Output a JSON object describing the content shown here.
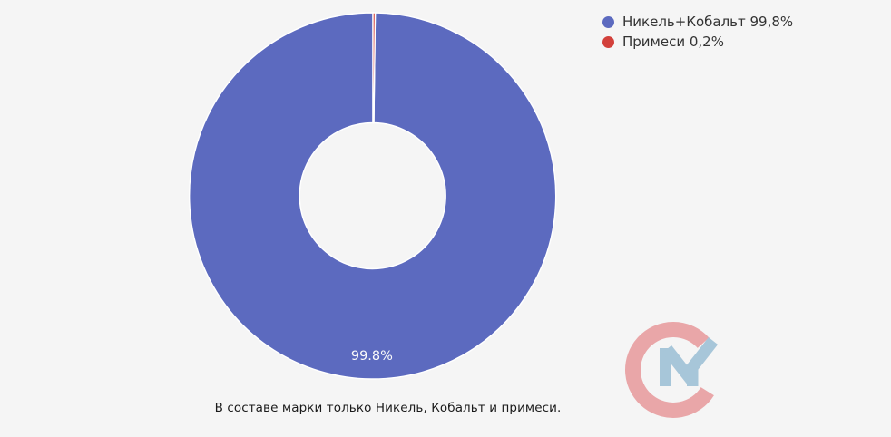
{
  "chart_data": {
    "type": "pie",
    "subtype": "donut",
    "title": "",
    "categories": [
      "Никель+Кобальт",
      "Примеси"
    ],
    "values": [
      99.8,
      0.2
    ],
    "unit": "%",
    "colors": [
      "#5c6abf",
      "#d2403b"
    ],
    "slice_stroke_color": "#ffffff",
    "slice_label": "99.8%",
    "slice_label_color": "#fafafa",
    "rotation_deg": 0.72,
    "legend_position": "top-right",
    "legend": [
      {
        "label": "Никель+Кобальт 99,8%",
        "color": "#5c6abf"
      },
      {
        "label": "Примеси 0,2%",
        "color": "#d2403b"
      }
    ]
  },
  "caption": "В составе марки только Никель, Кобальт и примеси.",
  "logo": {
    "name": "cm-watermark",
    "c_color": "#e9a6a8",
    "m_color": "#a7c6d9"
  }
}
